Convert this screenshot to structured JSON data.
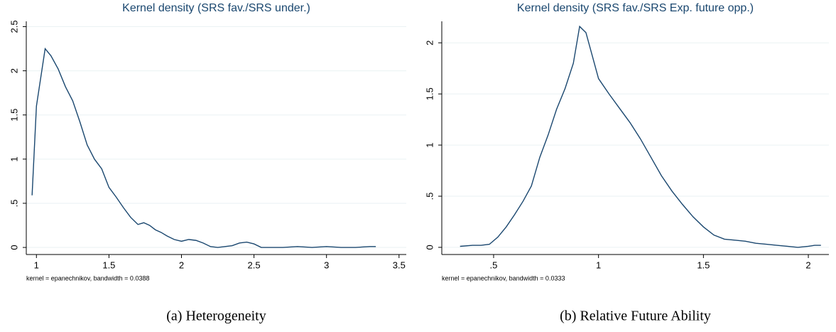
{
  "chart_data": [
    {
      "type": "line",
      "title": "Kernel density (SRS fav./SRS under.)",
      "note": "kernel = epanechnikov, bandwidth = 0.0388",
      "caption": "(a) Heterogeneity",
      "color": "#1a476f",
      "grid": true,
      "x": [
        0.97,
        1.0,
        1.06,
        1.1,
        1.15,
        1.2,
        1.25,
        1.3,
        1.35,
        1.4,
        1.45,
        1.5,
        1.55,
        1.6,
        1.65,
        1.7,
        1.74,
        1.78,
        1.82,
        1.86,
        1.9,
        1.95,
        2.0,
        2.05,
        2.1,
        2.15,
        2.2,
        2.25,
        2.3,
        2.35,
        2.4,
        2.45,
        2.5,
        2.55,
        2.6,
        2.7,
        2.8,
        2.9,
        3.0,
        3.1,
        3.2,
        3.3,
        3.34
      ],
      "values": [
        0.59,
        1.6,
        2.25,
        2.17,
        2.02,
        1.82,
        1.66,
        1.42,
        1.16,
        1.0,
        0.89,
        0.68,
        0.57,
        0.45,
        0.34,
        0.26,
        0.28,
        0.25,
        0.2,
        0.17,
        0.13,
        0.09,
        0.07,
        0.09,
        0.08,
        0.05,
        0.01,
        0.0,
        0.01,
        0.02,
        0.05,
        0.06,
        0.04,
        0.0,
        0.0,
        0.0,
        0.01,
        0.0,
        0.01,
        0.0,
        0.0,
        0.01,
        0.01
      ],
      "xlim": [
        0.93,
        3.55
      ],
      "xticks": [
        1,
        1.5,
        2,
        2.5,
        3,
        3.5
      ],
      "ylim": [
        -0.08,
        2.56
      ],
      "yticks": [
        0,
        {
          "value": 0.5,
          "label": ".5"
        },
        1,
        1.5,
        2,
        2.5
      ]
    },
    {
      "type": "line",
      "title": "Kernel density (SRS fav./SRS Exp. future opp.)",
      "note": "kernel = epanechnikov, bandwidth = 0.0333",
      "caption": "(b) Relative Future Ability",
      "color": "#1a476f",
      "grid": true,
      "x": [
        0.34,
        0.4,
        0.44,
        0.48,
        0.52,
        0.56,
        0.6,
        0.64,
        0.68,
        0.72,
        0.76,
        0.8,
        0.84,
        0.88,
        0.91,
        0.94,
        1.0,
        1.05,
        1.1,
        1.15,
        1.2,
        1.25,
        1.3,
        1.35,
        1.4,
        1.45,
        1.5,
        1.55,
        1.6,
        1.65,
        1.7,
        1.75,
        1.8,
        1.85,
        1.9,
        1.95,
        2.0,
        2.03,
        2.06
      ],
      "values": [
        0.01,
        0.02,
        0.02,
        0.03,
        0.1,
        0.2,
        0.32,
        0.45,
        0.6,
        0.88,
        1.1,
        1.35,
        1.55,
        1.8,
        2.16,
        2.1,
        1.65,
        1.5,
        1.36,
        1.22,
        1.06,
        0.88,
        0.7,
        0.55,
        0.42,
        0.3,
        0.2,
        0.12,
        0.08,
        0.07,
        0.06,
        0.04,
        0.03,
        0.02,
        0.01,
        0.0,
        0.01,
        0.02,
        0.02
      ],
      "xlim": [
        0.253,
        2.098
      ],
      "xticks": [
        {
          "value": 0.5,
          "label": ".5"
        },
        1,
        1.5,
        2
      ],
      "ylim": [
        -0.07,
        2.21
      ],
      "yticks": [
        0,
        {
          "value": 0.5,
          "label": ".5"
        },
        1,
        1.5,
        2
      ]
    }
  ]
}
